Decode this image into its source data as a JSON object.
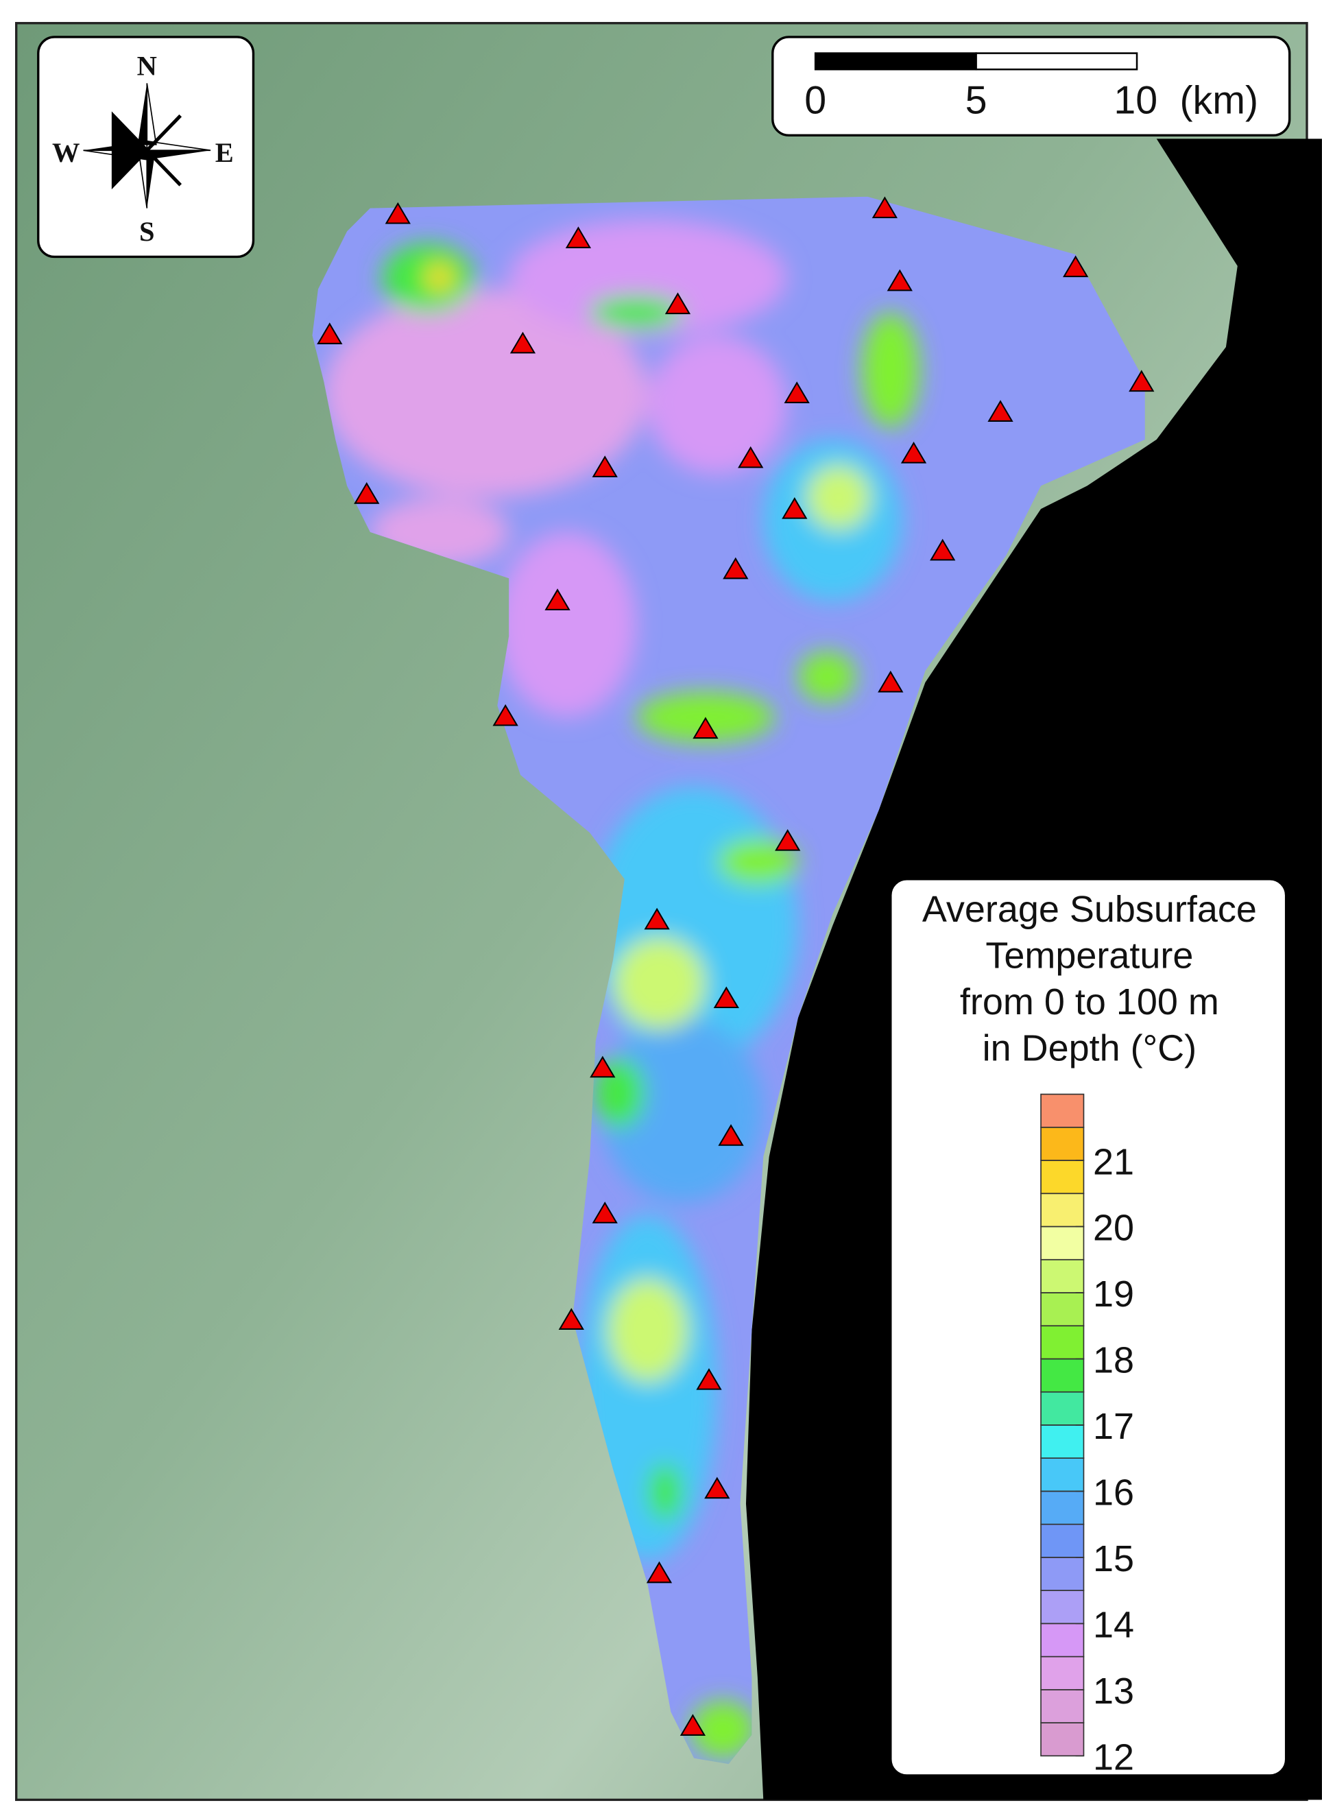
{
  "compass": {
    "north": "N",
    "south": "S",
    "east": "E",
    "west": "W"
  },
  "scale_bar": {
    "ticks": [
      0,
      5,
      10
    ],
    "unit": "(km)"
  },
  "legend": {
    "title": [
      "Average Subsurface",
      "Temperature",
      "from 0 to 100 m",
      "in Depth (°C)"
    ],
    "range": [
      12,
      22
    ],
    "step": 0.5,
    "ticks": [
      12,
      13,
      14,
      15,
      16,
      17,
      18,
      19,
      20,
      21
    ],
    "colors": [
      "#d99bd0",
      "#dca0dc",
      "#e0a2ea",
      "#d698f6",
      "#ac9ff6",
      "#8e9af6",
      "#6f96f6",
      "#56abf6",
      "#48c8f8",
      "#40f0f0",
      "#42e8a0",
      "#44e844",
      "#80f032",
      "#a8f052",
      "#ccf872",
      "#f2ffa2",
      "#f8ef70",
      "#fcd82a",
      "#fcb81a",
      "#f8906c"
    ]
  }
}
